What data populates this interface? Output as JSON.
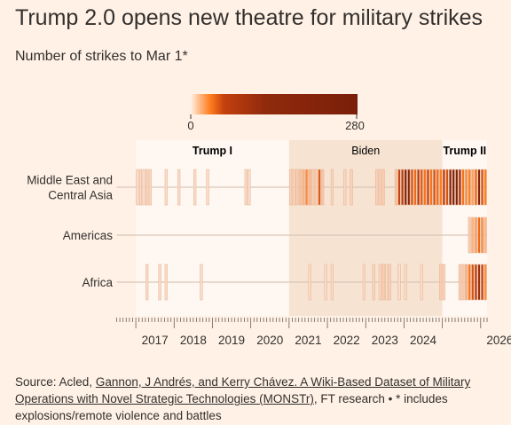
{
  "title": "Trump 2.0 opens new theatre for military strikes",
  "subtitle": "Number of strikes to Mar 1*",
  "legend": {
    "min_label": "0",
    "max_label": "280",
    "colors": [
      "#fff1e5",
      "#f8d6bf",
      "#ff7a1a",
      "#b83a10",
      "#7a1e0a"
    ]
  },
  "source": {
    "prefix": "Source: Acled, ",
    "link": "Gannon, J Andrés, and Kerry Chávez. A Wiki-Based Dataset of Military Operations with Novel Strategic Technologies (MONSTr)",
    "suffix": ", FT research • * includes explosions/remote violence and battles"
  },
  "chart_data": {
    "type": "heatmap",
    "title": "Number of strikes to Mar 1*",
    "value_range": [
      0,
      280
    ],
    "x_range": [
      "2016-07",
      "2026-03"
    ],
    "x_ticks": [
      "2017",
      "2018",
      "2019",
      "2020",
      "2021",
      "2022",
      "2023",
      "2024",
      "2026"
    ],
    "periods": [
      {
        "name": "Trump I",
        "start": "2017-01",
        "end": "2021-01"
      },
      {
        "name": "Biden",
        "start": "2021-01",
        "end": "2025-01"
      },
      {
        "name": "Trump II",
        "start": "2025-01",
        "end": "2026-03"
      }
    ],
    "regions": [
      {
        "name": "Middle East and Central Asia",
        "label_lines": [
          "Middle East and",
          "Central Asia"
        ],
        "cells": [
          [
            "2017-01",
            5
          ],
          [
            "2017-02",
            6
          ],
          [
            "2017-03",
            5
          ],
          [
            "2017-04",
            8
          ],
          [
            "2017-05",
            7
          ],
          [
            "2017-10",
            5
          ],
          [
            "2018-02",
            5
          ],
          [
            "2018-07",
            5
          ],
          [
            "2018-11",
            5
          ],
          [
            "2019-11",
            6
          ],
          [
            "2019-12",
            5
          ],
          [
            "2021-01",
            10
          ],
          [
            "2021-02",
            8
          ],
          [
            "2021-03",
            12
          ],
          [
            "2021-04",
            15
          ],
          [
            "2021-05",
            20
          ],
          [
            "2021-06",
            30
          ],
          [
            "2021-07",
            18
          ],
          [
            "2021-08",
            12
          ],
          [
            "2021-09",
            10
          ],
          [
            "2021-10",
            55
          ],
          [
            "2021-11",
            15
          ],
          [
            "2022-02",
            8
          ],
          [
            "2022-06",
            8
          ],
          [
            "2022-08",
            10
          ],
          [
            "2023-04",
            10
          ],
          [
            "2023-05",
            8
          ],
          [
            "2023-06",
            12
          ],
          [
            "2023-10",
            15
          ],
          [
            "2023-11",
            70
          ],
          [
            "2023-12",
            90
          ],
          [
            "2024-01",
            280
          ],
          [
            "2024-02",
            200
          ],
          [
            "2024-03",
            60
          ],
          [
            "2024-04",
            45
          ],
          [
            "2024-05",
            90
          ],
          [
            "2024-06",
            55
          ],
          [
            "2024-07",
            40
          ],
          [
            "2024-08",
            70
          ],
          [
            "2024-09",
            40
          ],
          [
            "2024-10",
            60
          ],
          [
            "2024-11",
            45
          ],
          [
            "2024-12",
            35
          ],
          [
            "2025-01",
            90
          ],
          [
            "2025-02",
            60
          ],
          [
            "2025-03",
            240
          ],
          [
            "2025-04",
            280
          ],
          [
            "2025-05",
            270
          ],
          [
            "2025-06",
            130
          ],
          [
            "2025-07",
            40
          ],
          [
            "2025-08",
            30
          ],
          [
            "2025-09",
            35
          ],
          [
            "2025-10",
            25
          ],
          [
            "2025-11",
            45
          ],
          [
            "2025-12",
            200
          ],
          [
            "2026-01",
            60
          ],
          [
            "2026-02",
            35
          ]
        ]
      },
      {
        "name": "Americas",
        "label_lines": [
          "Americas"
        ],
        "cells": [
          [
            "2025-09",
            12
          ],
          [
            "2025-10",
            20
          ],
          [
            "2025-11",
            25
          ],
          [
            "2025-12",
            45
          ],
          [
            "2026-01",
            30
          ],
          [
            "2026-02",
            18
          ]
        ]
      },
      {
        "name": "Africa",
        "label_lines": [
          "Africa"
        ],
        "cells": [
          [
            "2017-04",
            5
          ],
          [
            "2017-08",
            6
          ],
          [
            "2017-10",
            5
          ],
          [
            "2018-09",
            5
          ],
          [
            "2021-07",
            5
          ],
          [
            "2021-12",
            5
          ],
          [
            "2022-02",
            5
          ],
          [
            "2022-12",
            5
          ],
          [
            "2023-03",
            8
          ],
          [
            "2023-05",
            6
          ],
          [
            "2023-06",
            12
          ],
          [
            "2023-07",
            6
          ],
          [
            "2023-08",
            10
          ],
          [
            "2023-11",
            5
          ],
          [
            "2024-01",
            6
          ],
          [
            "2024-06",
            5
          ],
          [
            "2024-12",
            12
          ],
          [
            "2025-01",
            8
          ],
          [
            "2025-06",
            10
          ],
          [
            "2025-07",
            14
          ],
          [
            "2025-08",
            20
          ],
          [
            "2025-09",
            40
          ],
          [
            "2025-10",
            60
          ],
          [
            "2025-11",
            90
          ],
          [
            "2025-12",
            120
          ],
          [
            "2026-01",
            70
          ],
          [
            "2026-02",
            30
          ]
        ]
      }
    ]
  }
}
